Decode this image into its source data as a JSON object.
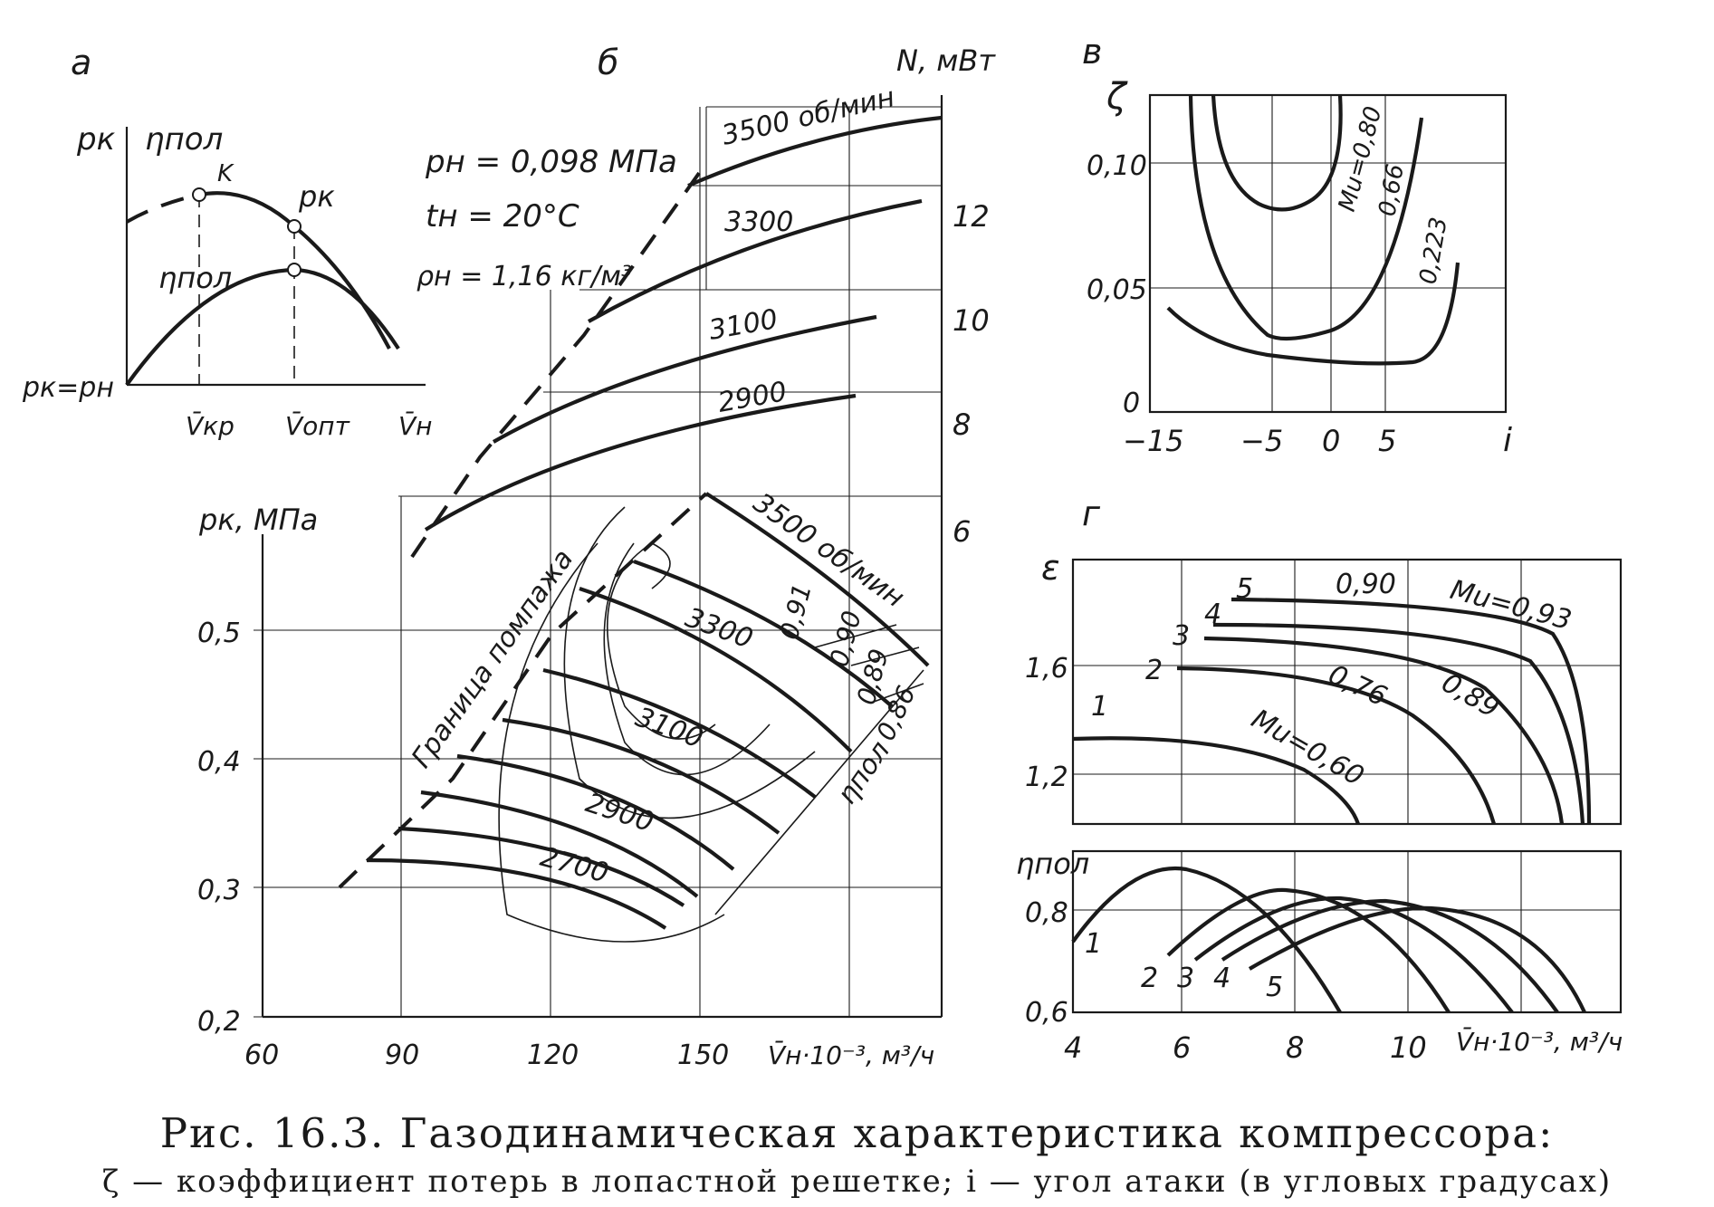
{
  "chart_data": [
    {
      "panel": "а",
      "type": "line",
      "xlabel": "V̄н",
      "ylabel": [
        "pк",
        "ηпол"
      ],
      "x_labels": [
        "V̄кр",
        "V̄опт",
        "V̄н"
      ],
      "origin_label": "pк=pн",
      "series": [
        {
          "name": "pк",
          "points": "K"
        },
        {
          "name": "ηпол"
        }
      ],
      "point_label": "K",
      "curve_label_pk": "pк",
      "curve_label_eta": "ηпол"
    },
    {
      "panel": "б",
      "type": "line",
      "xlabel": "V̄н·10⁻³, м³/ч",
      "x_ticks": [
        "60",
        "90",
        "120",
        "150"
      ],
      "xlim": [
        60,
        200
      ],
      "ylabel_left": "pк, МПа",
      "y_ticks_left": [
        "0,2",
        "0,3",
        "0,4",
        "0,5"
      ],
      "ylim_left": [
        0.2,
        0.55
      ],
      "ylabel_right": "N, мВт",
      "y_ticks_right": [
        "6",
        "8",
        "10",
        "12"
      ],
      "ylim_right": [
        5,
        15
      ],
      "conditions": [
        "pн = 0,098 МПа",
        "tн = 20°С",
        "ρн = 1,16 кг/м³"
      ],
      "power_series": [
        {
          "name": "3500 об/мин",
          "x": [
            150,
            165,
            180,
            200
          ],
          "y": [
            13.2,
            13.7,
            14.1,
            14.4
          ]
        },
        {
          "name": "3300",
          "x": [
            130,
            150,
            170,
            195
          ],
          "y": [
            10.5,
            11.4,
            12.0,
            12.6
          ]
        },
        {
          "name": "3100",
          "x": [
            110,
            130,
            160,
            185
          ],
          "y": [
            8.5,
            9.0,
            9.6,
            10.0
          ]
        },
        {
          "name": "2900",
          "x": [
            94,
            120,
            150,
            180
          ],
          "y": [
            6.0,
            7.0,
            7.7,
            8.2
          ]
        }
      ],
      "pressure_series": [
        {
          "name": "3500 об/мин"
        },
        {
          "name": "3300"
        },
        {
          "name": "3100"
        },
        {
          "name": "2900"
        },
        {
          "name": "2700"
        }
      ],
      "surge_label": "Граница помпажа",
      "efficiency_labels": [
        "0,91",
        "0,90",
        "0,89",
        "0,86"
      ],
      "efficiency_title": "ηпол"
    },
    {
      "panel": "в",
      "type": "line",
      "xlabel": "i",
      "x_ticks": [
        "−15",
        "−5",
        "0",
        "5"
      ],
      "xlim": [
        -15,
        12
      ],
      "ylabel": "ζ",
      "y_ticks": [
        "0",
        "0,05",
        "0,10"
      ],
      "ylim": [
        0,
        0.125
      ],
      "series": [
        {
          "name": "Mu=0,80",
          "x": [
            -10,
            -7,
            -4,
            -1,
            1
          ],
          "y": [
            0.125,
            0.09,
            0.08,
            0.085,
            0.125
          ]
        },
        {
          "name": "0,66",
          "x": [
            -12.5,
            -9,
            -4,
            0,
            4,
            6.5
          ],
          "y": [
            0.125,
            0.05,
            0.03,
            0.035,
            0.05,
            0.115
          ]
        },
        {
          "name": "0,223",
          "x": [
            -14,
            -10,
            -4,
            0,
            5,
            9
          ],
          "y": [
            0.04,
            0.028,
            0.022,
            0.02,
            0.02,
            0.06
          ]
        }
      ]
    },
    {
      "panel": "г",
      "type": "line",
      "xlabel": "V̄н·10⁻³, м³/ч",
      "x_ticks": [
        "4",
        "6",
        "8",
        "10"
      ],
      "xlim": [
        4,
        13.5
      ],
      "ylabel_top": "ε",
      "y_ticks_top": [
        "1,2",
        "1,6"
      ],
      "ylim_top": [
        1.0,
        1.9
      ],
      "ylabel_bottom": "ηпол",
      "y_ticks_bottom": [
        "0,6",
        "0,8"
      ],
      "ylim_bottom": [
        0.6,
        0.95
      ],
      "ratio_series": [
        {
          "name": "1",
          "label": "Mu=0,60",
          "x": [
            4,
            6,
            8,
            9.5
          ],
          "y": [
            1.35,
            1.34,
            1.25,
            1.0
          ]
        },
        {
          "name": "2",
          "label": "0,76",
          "x": [
            6,
            8,
            10,
            11
          ],
          "y": [
            1.6,
            1.58,
            1.45,
            1.0
          ]
        },
        {
          "name": "3",
          "label": "0,89",
          "x": [
            7,
            9,
            11,
            12.2
          ],
          "y": [
            1.72,
            1.7,
            1.55,
            1.0
          ]
        },
        {
          "name": "4",
          "label": "0,90",
          "x": [
            7.6,
            10,
            12,
            12.8
          ],
          "y": [
            1.77,
            1.76,
            1.65,
            1.0
          ]
        },
        {
          "name": "5",
          "label": "Mu=0,93",
          "x": [
            8,
            10,
            12,
            13
          ],
          "y": [
            1.83,
            1.82,
            1.74,
            1.0
          ]
        }
      ],
      "efficiency_series": [
        {
          "name": "1",
          "x": [
            4,
            6,
            8.5
          ],
          "y": [
            0.7,
            0.92,
            0.6
          ]
        },
        {
          "name": "2",
          "x": [
            6,
            8.2,
            10.5
          ],
          "y": [
            0.71,
            0.84,
            0.6
          ]
        },
        {
          "name": "3",
          "x": [
            6.5,
            9,
            11.5
          ],
          "y": [
            0.7,
            0.82,
            0.6
          ]
        },
        {
          "name": "4",
          "x": [
            7,
            10,
            12.5
          ],
          "y": [
            0.7,
            0.81,
            0.6
          ]
        },
        {
          "name": "5",
          "x": [
            7.5,
            11,
            13
          ],
          "y": [
            0.7,
            0.81,
            0.6
          ]
        }
      ]
    }
  ],
  "caption": {
    "line1": "Рис. 16.3. Газодинамическая характеристика компрессора:",
    "line2": "ζ — коэффициент потерь в лопастной решетке; i — угол атаки (в угловых градусах)"
  }
}
